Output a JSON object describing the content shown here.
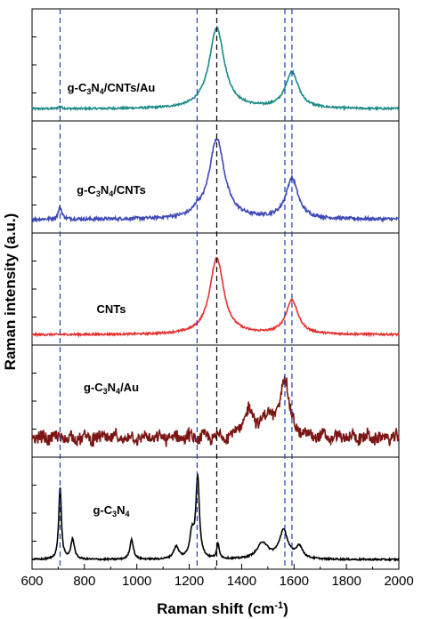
{
  "chart_data": {
    "type": "line",
    "xlabel": "Raman shift (cm",
    "xlabel_sup": "-1",
    "xlabel_suffix": ")",
    "ylabel": "Raman intensity (a.u.)",
    "xlim": [
      600,
      2000
    ],
    "x_ticks": [
      "600",
      "800",
      "1000",
      "1200",
      "1400",
      "1600",
      "1800",
      "2000"
    ],
    "reference_lines": [
      {
        "x": 707,
        "color": "#1f3fb5",
        "style": "dashed"
      },
      {
        "x": 1230,
        "color": "#1f3fb5",
        "style": "dashed"
      },
      {
        "x": 1305,
        "color": "#000000",
        "style": "dashed"
      },
      {
        "x": 1565,
        "color": "#1f3fb5",
        "style": "dashed"
      },
      {
        "x": 1592,
        "color": "#1f3fb5",
        "style": "dashed"
      }
    ],
    "series": [
      {
        "label_parts": [
          [
            "g-C",
            ""
          ],
          [
            "3",
            "sub"
          ],
          [
            "N",
            ""
          ],
          [
            "4",
            "sub"
          ],
          [
            "/CNTs/Au",
            ""
          ]
        ],
        "color": "#1a8a86",
        "baseline": 0.06,
        "peaks": [
          [
            707,
            0.03,
            8
          ],
          [
            1305,
            1.0,
            35
          ],
          [
            1592,
            0.45,
            30
          ]
        ],
        "noise": 0.012
      },
      {
        "label_parts": [
          [
            "g-C",
            ""
          ],
          [
            "3",
            "sub"
          ],
          [
            "N",
            ""
          ],
          [
            "4",
            "sub"
          ],
          [
            "/CNTs",
            ""
          ]
        ],
        "color": "#3e49b5",
        "baseline": 0.08,
        "peaks": [
          [
            707,
            0.15,
            8
          ],
          [
            1230,
            0.06,
            12
          ],
          [
            1305,
            1.0,
            35
          ],
          [
            1592,
            0.5,
            28
          ]
        ],
        "noise": 0.02
      },
      {
        "label_parts": [
          [
            "CNTs",
            ""
          ]
        ],
        "color": "#e5302e",
        "baseline": 0.04,
        "peaks": [
          [
            1305,
            0.95,
            32
          ],
          [
            1592,
            0.42,
            28
          ]
        ],
        "noise": 0.012
      },
      {
        "label_parts": [
          [
            "g-C",
            ""
          ],
          [
            "3",
            "sub"
          ],
          [
            "N",
            ""
          ],
          [
            "4",
            "sub"
          ],
          [
            "/Au",
            ""
          ]
        ],
        "color": "#7a1614",
        "baseline": 0.15,
        "peaks": [
          [
            1430,
            0.32,
            25
          ],
          [
            1505,
            0.25,
            25
          ],
          [
            1565,
            0.75,
            18
          ]
        ],
        "noise": 0.07
      },
      {
        "label_parts": [
          [
            "g-C",
            ""
          ],
          [
            "3",
            "sub"
          ],
          [
            "N",
            ""
          ],
          [
            "4",
            "sub"
          ],
          [
            "",
            ""
          ]
        ],
        "color": "#000000",
        "baseline": 0.03,
        "peaks": [
          [
            707,
            0.9,
            6
          ],
          [
            755,
            0.25,
            8
          ],
          [
            980,
            0.25,
            8
          ],
          [
            1150,
            0.15,
            12
          ],
          [
            1232,
            1.0,
            8
          ],
          [
            1210,
            0.3,
            10
          ],
          [
            1310,
            0.18,
            6
          ],
          [
            1480,
            0.2,
            25
          ],
          [
            1560,
            0.35,
            20
          ],
          [
            1620,
            0.15,
            15
          ]
        ],
        "noise": 0.01
      }
    ]
  }
}
